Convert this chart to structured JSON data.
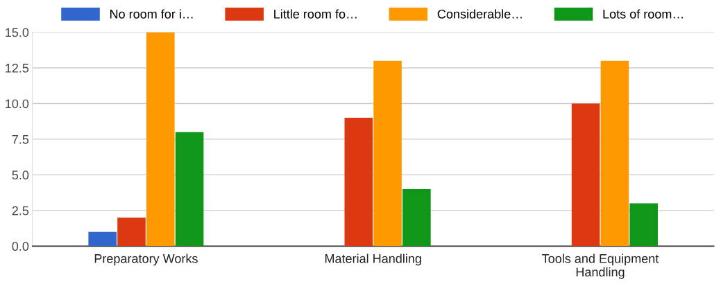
{
  "chart_data": {
    "type": "bar",
    "categories": [
      "Preparatory Works",
      "Material Handling",
      "Tools and Equipment Handling"
    ],
    "series": [
      {
        "name": "No room for i…",
        "color": "#3366cc",
        "values": [
          1,
          0,
          0
        ]
      },
      {
        "name": "Little room fo…",
        "color": "#dc3912",
        "values": [
          2,
          9,
          10
        ]
      },
      {
        "name": "Considerable…",
        "color": "#ff9900",
        "values": [
          15,
          13,
          13
        ]
      },
      {
        "name": "Lots of room…",
        "color": "#109618",
        "values": [
          8,
          4,
          3
        ]
      }
    ],
    "ylim": [
      0,
      15
    ],
    "yticks": [
      {
        "value": 0,
        "label": "0.0"
      },
      {
        "value": 2.5,
        "label": "2.5"
      },
      {
        "value": 5,
        "label": "5.0"
      },
      {
        "value": 7.5,
        "label": "7.5"
      },
      {
        "value": 10,
        "label": "10.0"
      },
      {
        "value": 12.5,
        "label": "12.5"
      },
      {
        "value": 15,
        "label": "15.0"
      }
    ],
    "grid": "y",
    "legend": "top"
  }
}
